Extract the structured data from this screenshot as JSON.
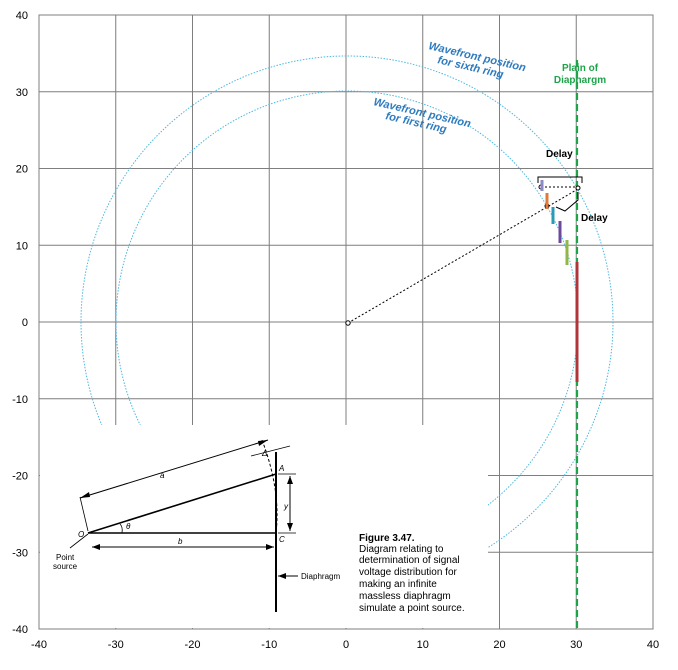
{
  "axes": {
    "x_ticks": [
      "-40",
      "-30",
      "-20",
      "-10",
      "0",
      "10",
      "20",
      "30",
      "40"
    ],
    "y_ticks": [
      "40",
      "30",
      "20",
      "10",
      "0",
      "-10",
      "-20",
      "-30",
      "-40"
    ],
    "x_range": [
      -40,
      40
    ],
    "y_range": [
      -40,
      40
    ],
    "grid": true
  },
  "labels": {
    "sixth_ring_line1": "Wavefront position",
    "sixth_ring_line2": "for sixth ring",
    "first_ring_line1": "Wavefront position",
    "first_ring_line2": "for first ring",
    "plain_line1": "Plain of",
    "plain_line2": "Diaphargm",
    "delay_top": "Delay",
    "delay_side": "Delay"
  },
  "inset": {
    "label_a": "a",
    "label_b": "b",
    "label_y": "y",
    "label_A": "A",
    "label_C": "C",
    "label_O": "O",
    "label_theta": "θ",
    "label_delta": "Δ",
    "point_source_line1": "Point",
    "point_source_line2": "source",
    "diaphragm": "Diaphragm"
  },
  "caption": {
    "title": "Figure 3.47.",
    "lines": [
      "Diagram relating to",
      "determination of signal",
      "voltage distribution for",
      "making an infinite",
      "massless diaphragm",
      "simulate a point source."
    ]
  },
  "colors": {
    "grid": "#7f7f7f",
    "wavefront": "#4bb8e0",
    "diaphragm_plane": "#1fa34a",
    "label_blue": "#2f7bbf",
    "ring_colors": [
      "#8e8ac6",
      "#e07a3a",
      "#2a9bb5",
      "#6b4a9e",
      "#8fb848",
      "#b0353a"
    ]
  }
}
